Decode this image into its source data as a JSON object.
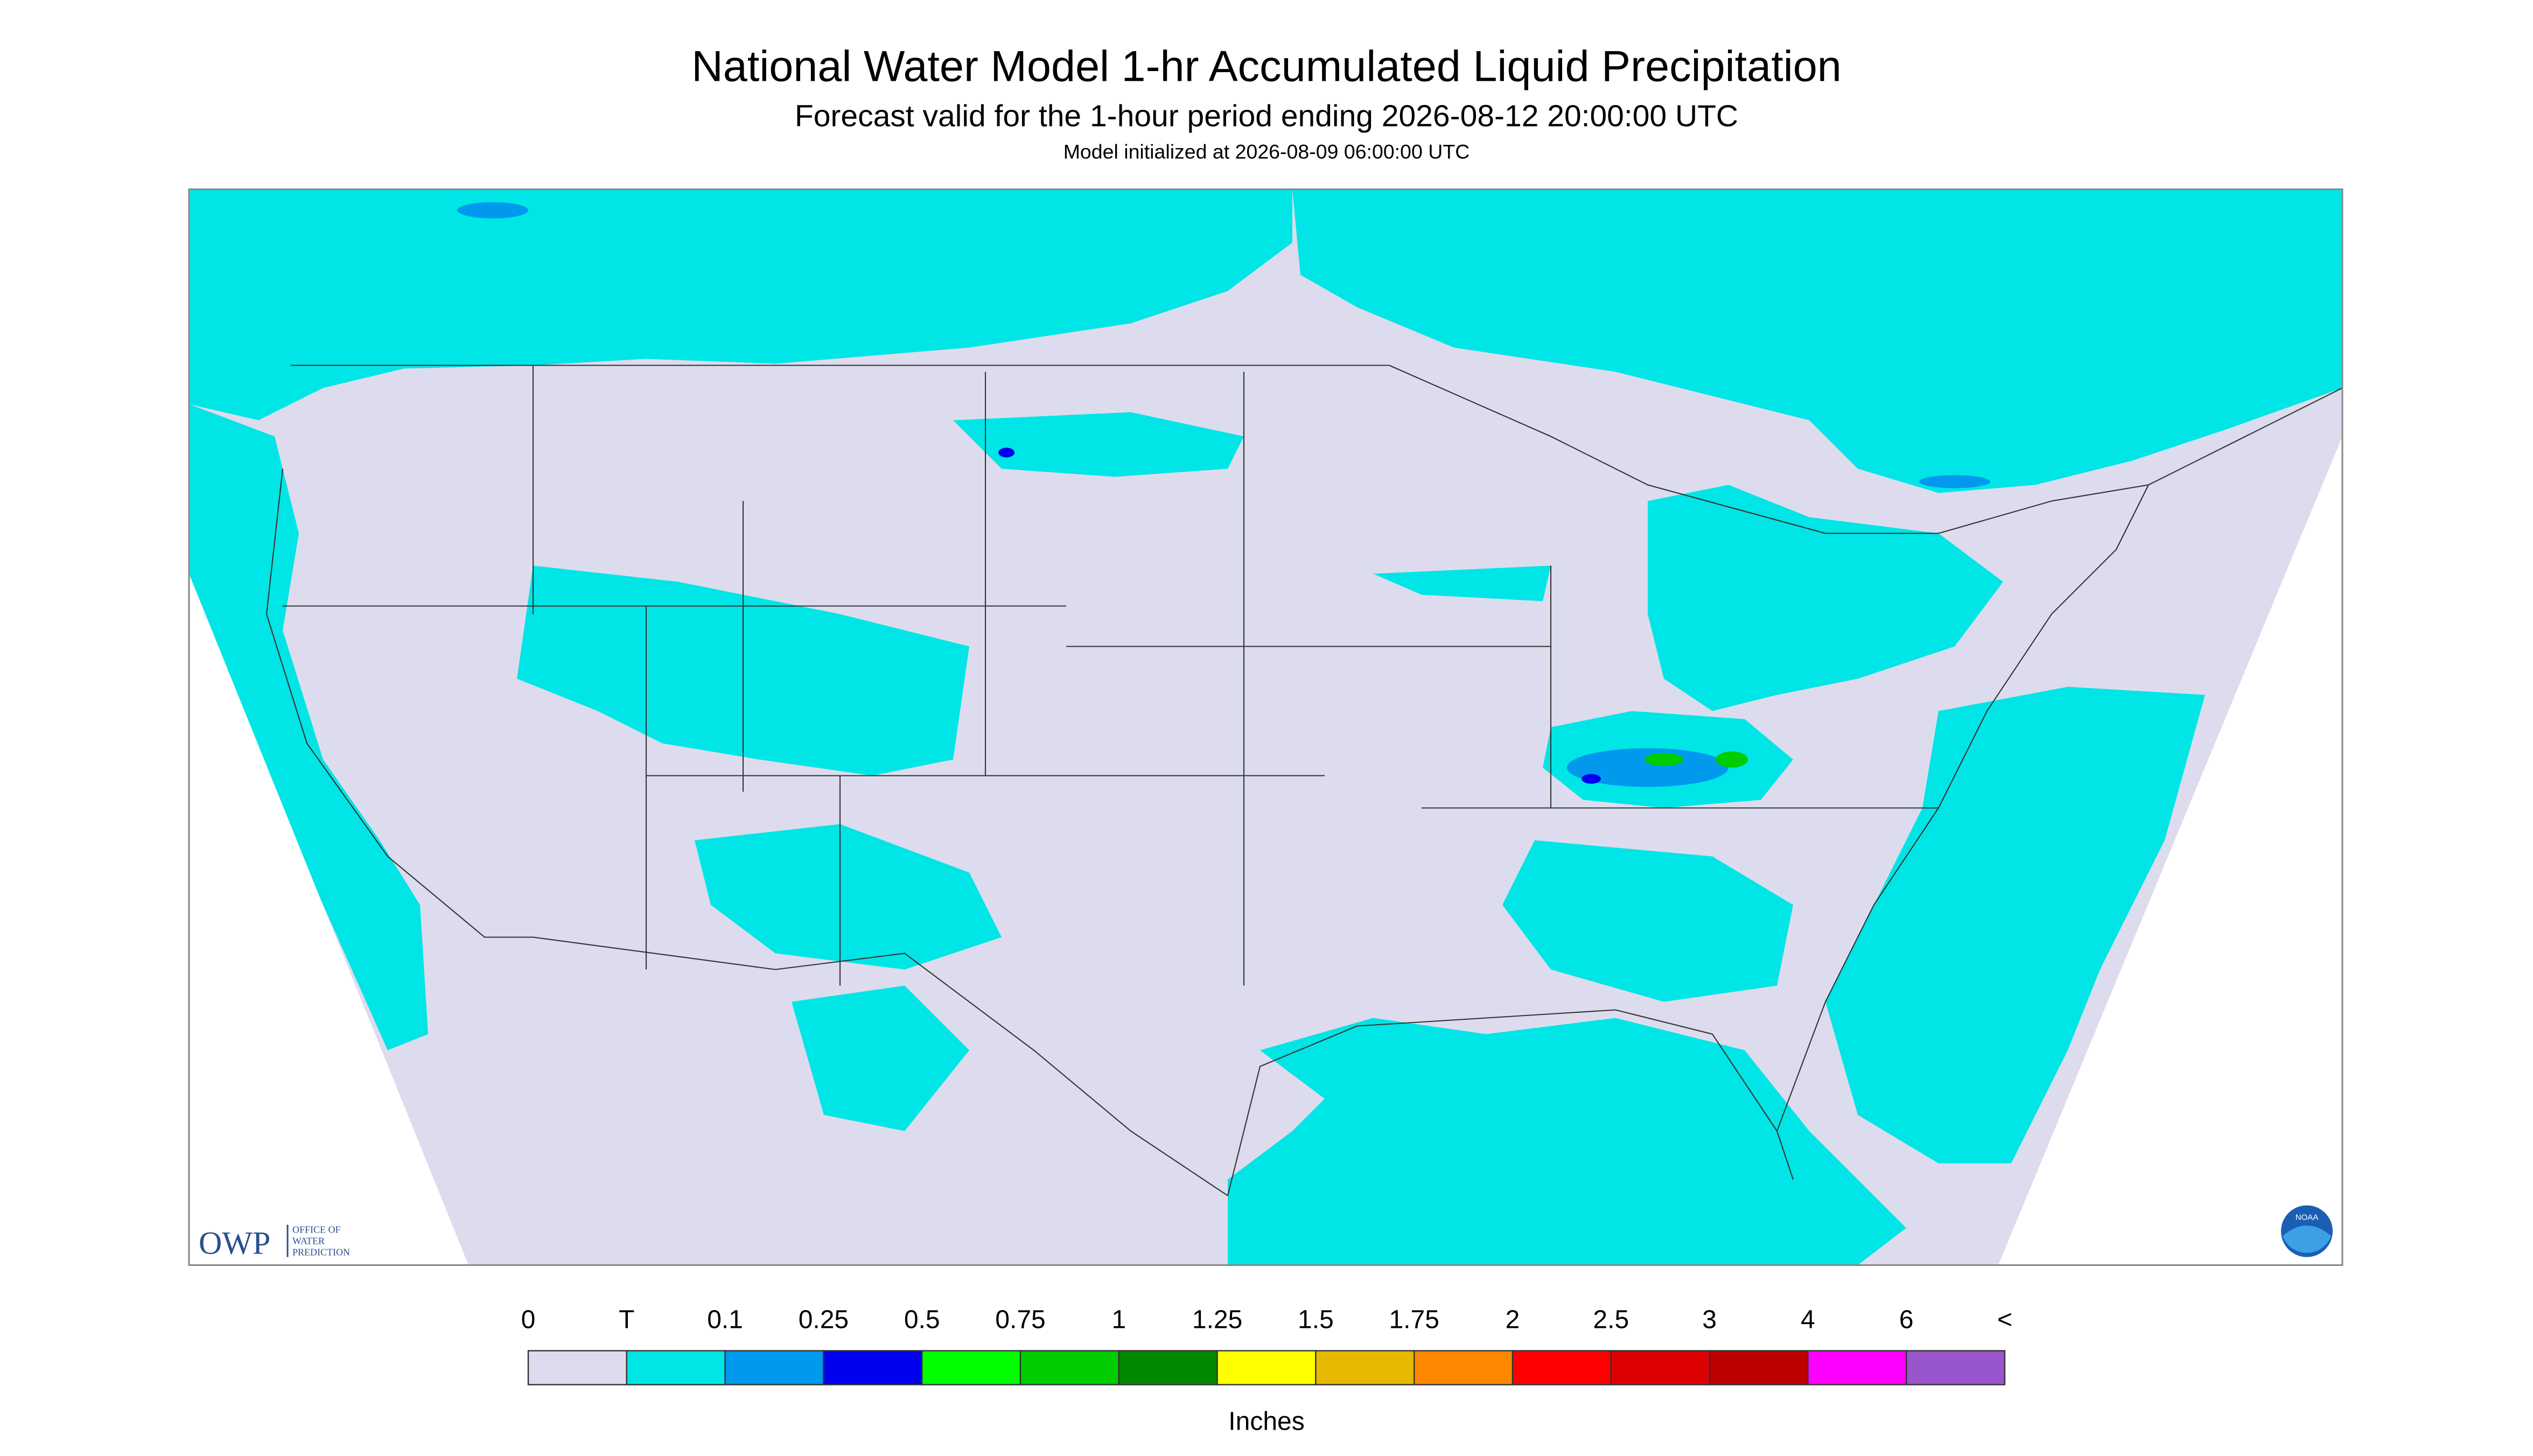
{
  "header": {
    "title": "National Water Model 1-hr Accumulated Liquid Precipitation",
    "subtitle": "Forecast valid for the 1-hour period ending 2026-08-12 20:00:00 UTC",
    "init": "Model initialized at 2026-08-09 06:00:00 UTC"
  },
  "legend": {
    "labels": [
      "0",
      "T",
      "0.1",
      "0.25",
      "0.5",
      "0.75",
      "1",
      "1.25",
      "1.5",
      "1.75",
      "2",
      "2.5",
      "3",
      "4",
      "6",
      "<"
    ],
    "colors": [
      "#dcdcee",
      "#00e5e5",
      "#0099ee",
      "#0000ee",
      "#00ff00",
      "#00cc00",
      "#008800",
      "#ffff00",
      "#e6b800",
      "#ff8800",
      "#ff0000",
      "#dd0000",
      "#bb0000",
      "#ff00ff",
      "#9955cc"
    ],
    "unit": "Inches"
  },
  "logo": {
    "owp": "OWP",
    "office": "OFFICE OF",
    "water": "WATER",
    "prediction": "PREDICTION",
    "noaa": "NOAA"
  }
}
